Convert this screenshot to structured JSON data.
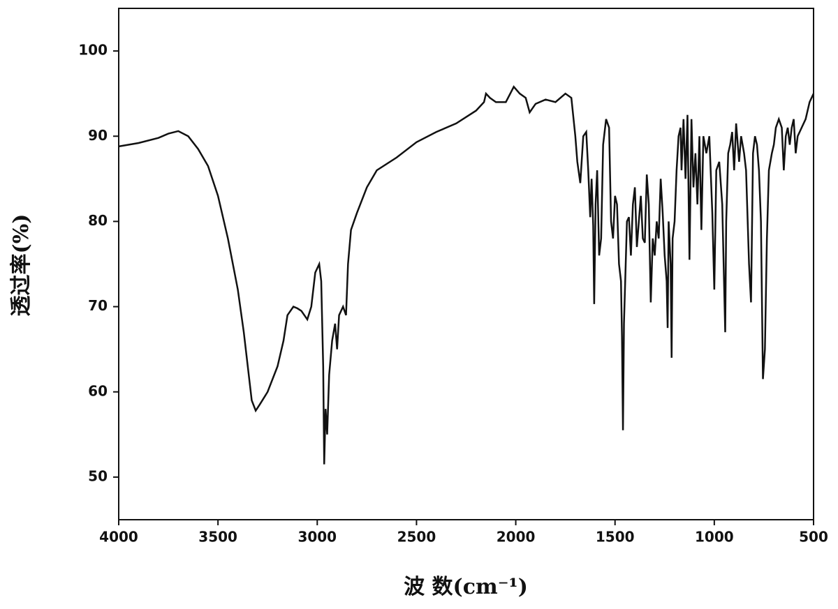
{
  "chart_data": {
    "type": "line",
    "x_label": "波 数(cm⁻¹)",
    "y_label": "透过率(%)",
    "xlim": [
      4000,
      500
    ],
    "ylim": [
      45,
      105
    ],
    "xticks": [
      4000,
      3500,
      3000,
      2500,
      2000,
      1500,
      1000,
      500
    ],
    "yticks": [
      50,
      60,
      70,
      80,
      90,
      100
    ],
    "x": [
      4000,
      3900,
      3800,
      3750,
      3700,
      3650,
      3600,
      3550,
      3500,
      3450,
      3400,
      3370,
      3350,
      3330,
      3310,
      3290,
      3250,
      3200,
      3170,
      3150,
      3120,
      3100,
      3080,
      3050,
      3030,
      3010,
      2990,
      2980,
      2970,
      2965,
      2958,
      2950,
      2940,
      2925,
      2910,
      2900,
      2890,
      2870,
      2855,
      2845,
      2830,
      2800,
      2750,
      2700,
      2600,
      2500,
      2400,
      2300,
      2200,
      2160,
      2150,
      2130,
      2100,
      2050,
      2010,
      1980,
      1950,
      1930,
      1900,
      1850,
      1800,
      1750,
      1720,
      1700,
      1690,
      1675,
      1660,
      1645,
      1635,
      1625,
      1618,
      1610,
      1605,
      1598,
      1590,
      1580,
      1570,
      1560,
      1545,
      1530,
      1520,
      1510,
      1500,
      1490,
      1480,
      1470,
      1465,
      1460,
      1455,
      1445,
      1440,
      1430,
      1420,
      1410,
      1400,
      1390,
      1380,
      1370,
      1360,
      1350,
      1340,
      1330,
      1320,
      1310,
      1300,
      1290,
      1280,
      1270,
      1260,
      1250,
      1240,
      1235,
      1230,
      1220,
      1215,
      1210,
      1200,
      1190,
      1180,
      1170,
      1165,
      1155,
      1145,
      1135,
      1125,
      1115,
      1105,
      1095,
      1085,
      1075,
      1065,
      1055,
      1040,
      1025,
      1010,
      1000,
      990,
      975,
      960,
      945,
      940,
      930,
      920,
      910,
      900,
      890,
      875,
      865,
      850,
      840,
      825,
      815,
      805,
      795,
      785,
      775,
      765,
      755,
      745,
      735,
      725,
      710,
      700,
      690,
      675,
      660,
      650,
      640,
      630,
      620,
      610,
      600,
      590,
      580,
      560,
      540,
      520,
      500
    ],
    "series": [
      {
        "color": "#111111",
        "values": [
          88.8,
          89.2,
          89.8,
          90.3,
          90.6,
          90.0,
          88.5,
          86.5,
          83,
          78,
          72,
          67,
          63,
          59,
          57.8,
          58.5,
          60,
          63,
          66,
          69,
          70,
          69.8,
          69.5,
          68.5,
          70,
          74,
          75,
          73,
          63,
          51.5,
          58,
          55,
          62,
          66,
          68,
          65,
          69,
          70,
          69,
          75,
          79,
          81,
          84,
          86,
          87.5,
          89.3,
          90.5,
          91.5,
          93,
          94,
          95,
          94.5,
          94,
          94,
          95.8,
          95,
          94.5,
          92.8,
          93.8,
          94.3,
          94,
          95,
          94.5,
          90,
          87,
          84.5,
          90,
          90.5,
          86,
          80.5,
          85,
          79.5,
          70.3,
          82,
          86,
          76,
          78,
          89,
          92,
          91,
          80,
          78,
          83,
          82,
          75,
          73,
          66.5,
          55.5,
          68,
          76,
          80,
          80.5,
          76,
          82,
          84,
          77,
          80,
          83,
          78,
          77.5,
          85.5,
          82,
          70.5,
          78,
          76,
          80,
          78,
          85,
          81,
          76,
          73,
          67.5,
          80,
          75,
          64,
          78,
          80,
          86,
          90,
          91,
          86,
          92,
          85,
          92.5,
          75.5,
          92,
          84,
          88,
          82,
          90,
          79,
          90,
          88,
          90,
          81,
          72,
          86,
          87,
          82,
          67,
          80,
          88,
          89,
          90.5,
          86,
          91.5,
          87,
          90,
          88,
          86,
          75,
          70.5,
          88,
          90,
          89,
          86,
          80,
          61.5,
          65,
          78,
          86,
          88,
          89,
          91,
          92,
          91,
          86,
          90,
          91,
          89,
          91,
          92,
          88,
          90,
          91,
          92,
          94,
          95
        ]
      }
    ]
  }
}
